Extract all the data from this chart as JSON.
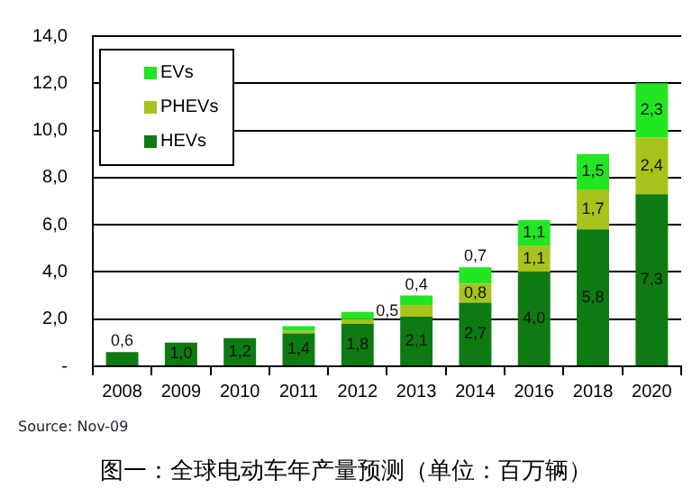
{
  "chart_data": {
    "type": "bar",
    "stacked": true,
    "categories": [
      "2008",
      "2009",
      "2010",
      "2011",
      "2012",
      "2013",
      "2014",
      "2016",
      "2018",
      "2020"
    ],
    "series": [
      {
        "name": "HEVs",
        "color": "#0e7a12",
        "values": [
          0.6,
          1.0,
          1.2,
          1.4,
          1.8,
          2.1,
          2.7,
          4.0,
          5.8,
          7.3
        ],
        "value_labels": [
          "0,6",
          "1,0",
          "1,2",
          "1,4",
          "1,8",
          "2,1",
          "2,7",
          "4,0",
          "5,8",
          "7,3"
        ]
      },
      {
        "name": "PHEVs",
        "color": "#a6c41c",
        "values": [
          null,
          null,
          null,
          0.1,
          0.2,
          0.5,
          0.8,
          1.1,
          1.7,
          2.4
        ],
        "value_labels": [
          null,
          null,
          null,
          null,
          null,
          "0,5",
          "0,8",
          "1,1",
          "1,7",
          "2,4"
        ]
      },
      {
        "name": "EVs",
        "color": "#22e622",
        "values": [
          null,
          null,
          null,
          0.2,
          0.3,
          0.4,
          0.7,
          1.1,
          1.5,
          2.3
        ],
        "value_labels": [
          null,
          null,
          null,
          null,
          null,
          "0,4",
          "0,7",
          "1,1",
          "1,5",
          "2,3"
        ]
      }
    ],
    "ylim": [
      0,
      14
    ],
    "yticks": [
      {
        "value": 0,
        "label": "-"
      },
      {
        "value": 2,
        "label": "2,0"
      },
      {
        "value": 4,
        "label": "4,0"
      },
      {
        "value": 6,
        "label": "6,0"
      },
      {
        "value": 8,
        "label": "8,0"
      },
      {
        "value": 10,
        "label": "10,0"
      },
      {
        "value": 12,
        "label": "12,0"
      },
      {
        "value": 14,
        "label": "14,0"
      }
    ],
    "grid": "y",
    "legend": "top left",
    "annotations": [
      "Source: Nov-09",
      "图一：全球电动车年产量预测（单位：百万辆）"
    ]
  }
}
